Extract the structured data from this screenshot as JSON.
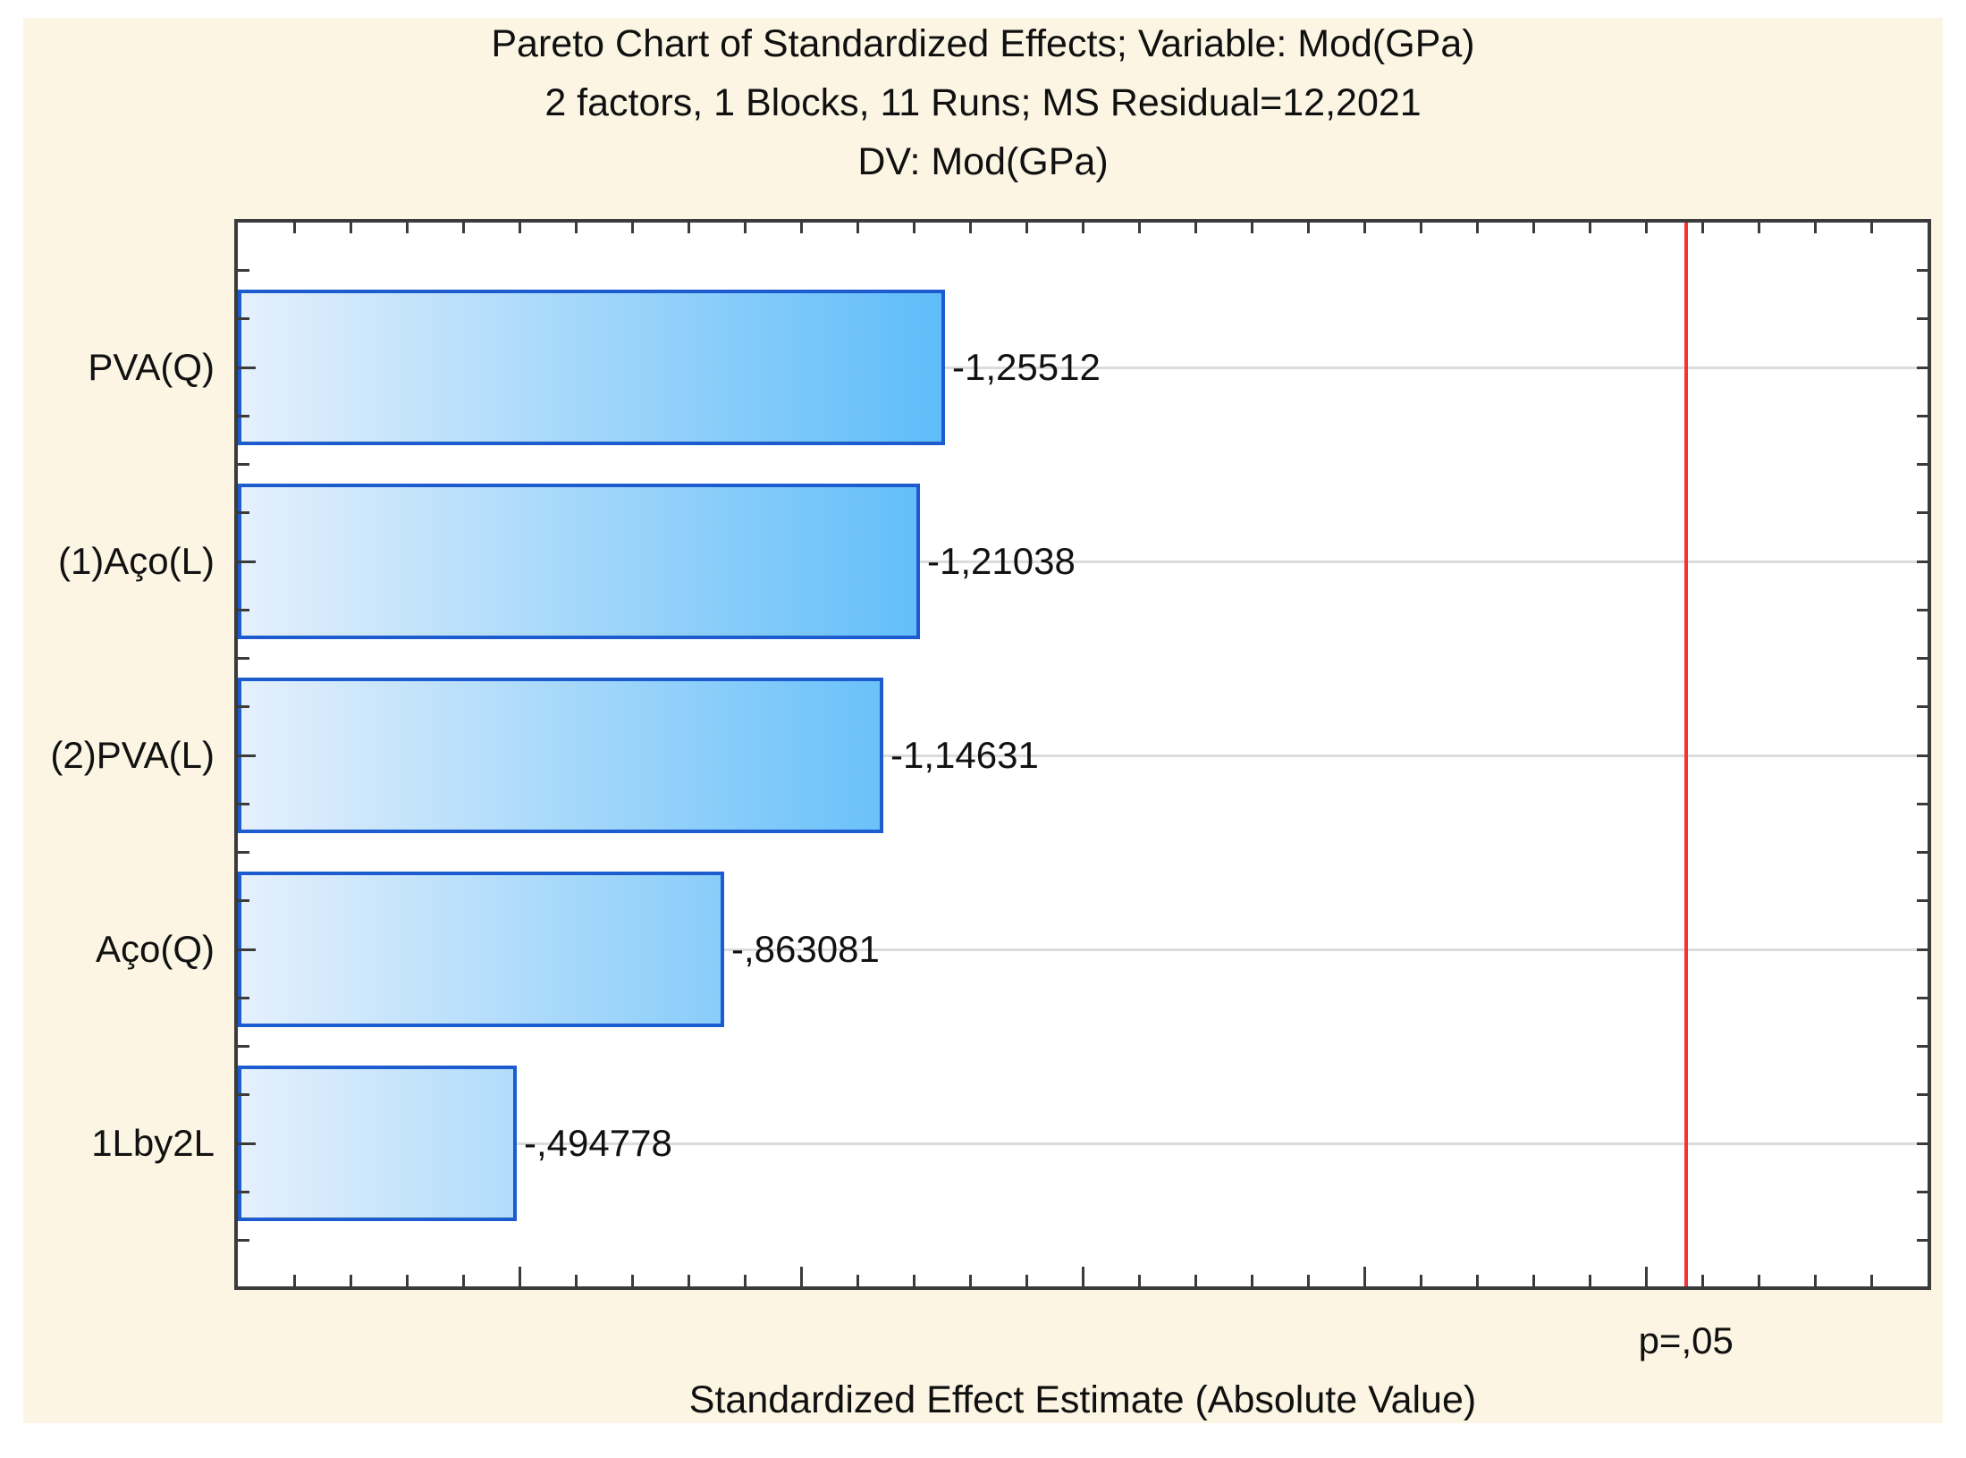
{
  "title": {
    "line1": "Pareto Chart of Standardized Effects; Variable: Mod(GPa)",
    "line2": "2 factors, 1 Blocks, 11 Runs; MS Residual=12,2021",
    "line3": "DV: Mod(GPa)"
  },
  "chart_data": {
    "type": "bar",
    "orientation": "horizontal",
    "categories": [
      "PVA(Q)",
      "(1)Aço(L)",
      "(2)PVA(L)",
      "Aço(Q)",
      "1Lby2L"
    ],
    "values": [
      1.25512,
      1.21038,
      1.14631,
      0.863081,
      0.494778
    ],
    "bar_labels": [
      "-1,25512",
      "-1,21038",
      "-1,14631",
      "-,863081",
      "-,494778"
    ],
    "xlabel": "Standardized Effect Estimate (Absolute Value)",
    "ylabel": "",
    "xlim": [
      0,
      3.0
    ],
    "x_minor_tick": 0.1,
    "x_major_tick": 0.5,
    "grid": "horizontal gridline at each category center",
    "legend": "none",
    "reference_line": {
      "x": 2.571,
      "label": "p=,05"
    },
    "colors": {
      "page_background": "#fcf5e3",
      "plot_background": "#ffffff",
      "frame": "#3b3b3b",
      "gridline": "#dcdcdc",
      "bar_border": "#1c5cce",
      "bar_gradient_start": "#e5f0fc",
      "bar_gradient_end": "#4ab5f8",
      "reference_line": "#f43430",
      "text": "#111111"
    }
  }
}
